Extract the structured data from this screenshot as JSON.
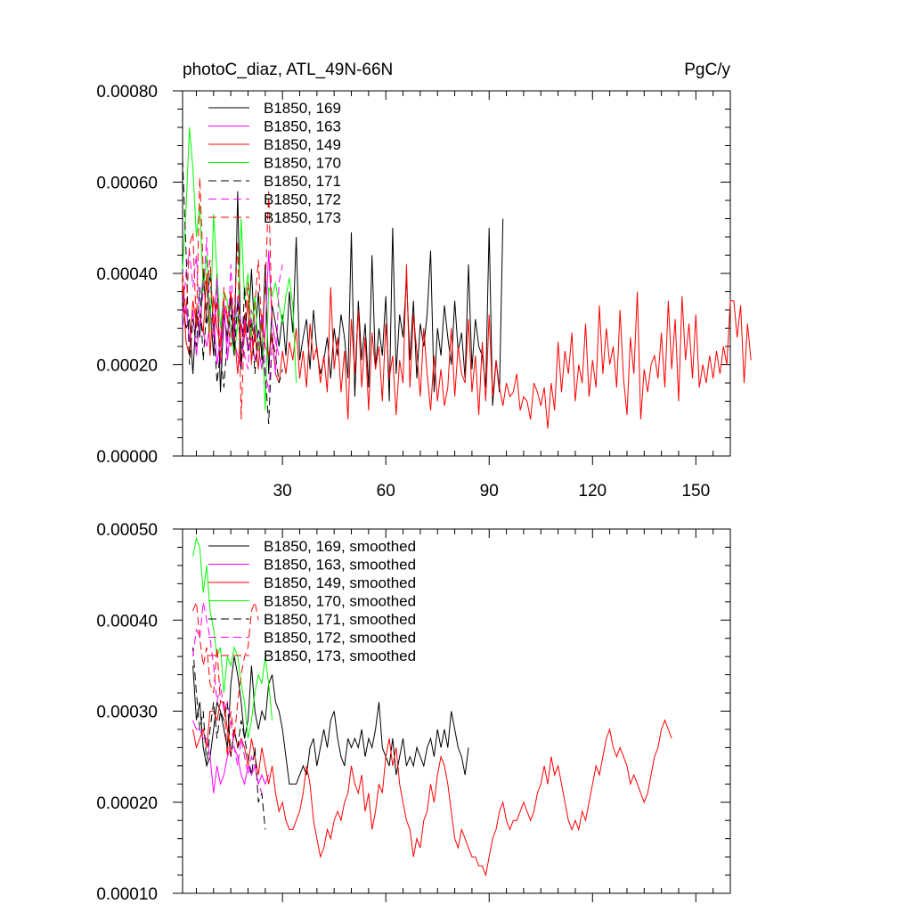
{
  "chart_data": [
    {
      "type": "line",
      "title": "photoC_diaz, ATL_49N-66N",
      "units": "PgC/y",
      "xlabel": "",
      "ylabel": "",
      "xlim": [
        1,
        160
      ],
      "ylim": [
        0,
        0.0008
      ],
      "xticks": [
        30,
        60,
        90,
        120,
        150
      ],
      "xtick_labels": [
        "30",
        "60",
        "90",
        "120",
        "150"
      ],
      "yticks": [
        0,
        0.0002,
        0.0004,
        0.0006,
        0.0008
      ],
      "ytick_labels": [
        "0.00000",
        "0.00020",
        "0.00040",
        "0.00060",
        "0.00080"
      ],
      "legend_position": "top-left",
      "series": [
        {
          "name": "B1850, 169",
          "label": "B1850, 169",
          "color": "#000000",
          "dash": "solid",
          "x_start": 1,
          "values": [
            0.00034,
            0.00028,
            0.0003,
            0.00018,
            0.00032,
            0.00026,
            0.00041,
            0.00029,
            0.00033,
            0.00022,
            0.0004,
            0.00014,
            0.00031,
            0.00026,
            0.00035,
            0.00023,
            0.00058,
            0.00019,
            0.00031,
            0.00027,
            0.00041,
            0.00025,
            0.00036,
            0.00021,
            0.00042,
            0.00018,
            0.00033,
            0.00029,
            0.00024,
            0.00031,
            0.00022,
            0.00036,
            0.00027,
            0.00048,
            0.00021,
            0.00026,
            0.0003,
            0.00019,
            0.00032,
            0.00023,
            0.00018,
            0.00021,
            0.00026,
            0.00017,
            0.00028,
            0.00022,
            0.00031,
            0.00026,
            0.00017,
            0.00049,
            0.00013,
            0.00034,
            0.00021,
            0.00029,
            0.00015,
            0.00044,
            0.00019,
            0.00028,
            0.00022,
            0.00035,
            0.00012,
            0.0005,
            0.00018,
            0.00031,
            0.00026,
            0.00039,
            0.00021,
            0.00034,
            0.00017,
            0.00029,
            0.00024,
            0.00031,
            0.00045,
            0.00014,
            0.00028,
            0.00022,
            0.00033,
            0.00026,
            0.0002,
            0.00034,
            0.00023,
            0.00027,
            0.00017,
            0.00042,
            0.00019,
            0.0003,
            0.00024,
            0.00022,
            0.00015,
            0.0005,
            0.00011,
            0.00021,
            0.00014,
            0.00052
          ]
        },
        {
          "name": "B1850, 163",
          "label": "B1850, 163",
          "color": "#ff00ff",
          "dash": "solid",
          "x_start": 1,
          "values": [
            0.00028,
            0.00033,
            0.00025,
            0.00032,
            0.00022,
            0.0003,
            0.00027,
            0.00024,
            0.00029,
            0.00031,
            0.0002,
            0.00026,
            0.00034,
            0.00021,
            0.00028,
            0.00025,
            0.00022,
            0.00019,
            0.0003,
            0.00023,
            0.00026,
            0.00021,
            0.00024,
            0.00019,
            0.00027,
            0.00045,
            0.00029,
            0.00025,
            0.00022
          ]
        },
        {
          "name": "B1850, 149",
          "label": "B1850, 149",
          "color": "#ff0000",
          "dash": "solid",
          "x_start": 1,
          "values": [
            0.00038,
            0.00025,
            0.00022,
            0.00034,
            0.00029,
            0.00031,
            0.00027,
            0.0004,
            0.00022,
            0.00035,
            0.00028,
            0.00024,
            0.00033,
            0.0003,
            0.00036,
            0.00027,
            0.00018,
            0.00029,
            0.00026,
            0.00034,
            0.00021,
            0.00027,
            0.00019,
            0.00031,
            0.00024,
            0.00022,
            0.00027,
            0.00018,
            0.00016,
            0.00023,
            0.00018,
            0.00025,
            0.00021,
            0.00028,
            0.00017,
            0.00023,
            0.00015,
            0.00029,
            0.00021,
            0.00024,
            0.00016,
            0.00022,
            0.00014,
            0.00037,
            0.00019,
            0.00026,
            0.00014,
            0.00023,
            8e-05,
            0.0003,
            0.00018,
            0.00032,
            0.00015,
            0.00026,
            0.0001,
            0.00027,
            0.00019,
            0.00024,
            0.00012,
            0.00029,
            0.00017,
            0.00022,
            9e-05,
            0.00021,
            0.00016,
            0.00042,
            0.00015,
            0.00031,
            0.00023,
            0.00013,
            0.00028,
            0.00018,
            0.0001,
            0.00022,
            0.00012,
            0.00019,
            0.00011,
            0.00015,
            0.00028,
            0.00013,
            0.00024,
            0.00018,
            0.00016,
            0.0003,
            0.00014,
            0.00022,
            9e-05,
            0.00025,
            0.00012,
            0.00031,
            0.00013,
            0.00021,
            0.00015,
            0.00011,
            0.00016,
            0.00013,
            0.00014,
            0.00018,
            0.0001,
            0.00013,
            0.00012,
            8e-05,
            0.00016,
            0.00014,
            0.00011,
            0.00015,
            6e-05,
            0.00016,
            0.0001,
            0.00025,
            0.00014,
            0.00023,
            0.00018,
            0.00027,
            0.00012,
            0.0002,
            0.00016,
            0.00029,
            0.00013,
            0.00021,
            0.00015,
            0.00033,
            0.00018,
            0.00028,
            0.0002,
            0.00024,
            0.00015,
            0.00032,
            0.00017,
            9e-05,
            0.00026,
            0.00018,
            0.00036,
            8e-05,
            0.00019,
            0.00014,
            0.0002,
            0.00022,
            0.00017,
            0.00027,
            0.00015,
            0.00034,
            0.00019,
            0.0003,
            0.00012,
            0.00035,
            0.00021,
            0.00029,
            0.00017,
            0.00031,
            0.00015,
            0.0002,
            0.00016,
            0.00022,
            0.00017,
            0.00023,
            0.00018,
            0.00024,
            0.0002,
            0.00034,
            0.00034,
            0.00026,
            0.00033,
            0.00016,
            0.00029,
            0.00021
          ]
        },
        {
          "name": "B1850, 170",
          "label": "B1850, 170",
          "color": "#00ff00",
          "dash": "solid",
          "x_start": 1,
          "values": [
            0.00041,
            0.00054,
            0.00072,
            0.00063,
            0.00048,
            0.00055,
            0.00036,
            0.00044,
            0.00027,
            0.00053,
            0.0004,
            0.00028,
            0.00036,
            0.00034,
            0.00027,
            0.00022,
            0.00029,
            0.00052,
            0.00034,
            0.0004,
            0.00026,
            0.00035,
            0.00023,
            0.0003,
            0.0001,
            0.00037,
            0.00035,
            0.00038,
            0.00033,
            0.00029,
            0.00035,
            0.00039,
            0.00033,
            0.00016
          ]
        },
        {
          "name": "B1850, 171",
          "label": "B1850, 171",
          "color": "#000000",
          "dash": "dashed",
          "x_start": 1,
          "values": [
            0.00065,
            0.00045,
            0.0002,
            0.0003,
            0.00024,
            0.00037,
            0.00021,
            0.00033,
            0.0004,
            0.00028,
            0.00016,
            0.00023,
            0.00015,
            0.00026,
            0.00031,
            0.00022,
            0.00034,
            0.00019,
            0.00037,
            0.00023,
            0.0003,
            0.00018,
            0.00028,
            0.00023,
            0.00018,
            7e-05,
            0.00026,
            0.00022,
            0.00016,
            0.00019
          ]
        },
        {
          "name": "B1850, 172",
          "label": "B1850, 172",
          "color": "#ff00ff",
          "dash": "dashed",
          "x_start": 1,
          "values": [
            0.00031,
            0.0004,
            0.00045,
            0.00037,
            0.00044,
            0.00029,
            0.00036,
            0.00048,
            0.00031,
            0.00026,
            0.00039,
            0.0002,
            0.00033,
            0.00023,
            0.00042,
            0.00026,
            0.00035,
            0.00029,
            0.00022,
            0.00019,
            0.00032,
            0.00028,
            0.00024,
            0.00031,
            0.00019,
            0.00014,
            0.00025,
            0.00018,
            0.00038,
            0.00042
          ]
        },
        {
          "name": "B1850, 173",
          "label": "B1850, 173",
          "color": "#ff0000",
          "dash": "dashed",
          "x_start": 1,
          "values": [
            0.0004,
            0.00031,
            0.00046,
            0.00049,
            0.00028,
            0.00061,
            0.00041,
            0.00036,
            0.00043,
            0.00027,
            0.00034,
            0.00021,
            0.00037,
            0.0003,
            0.00024,
            0.00031,
            0.00047,
            8e-05,
            0.00029,
            0.00038,
            0.0002,
            0.00033,
            0.00043,
            0.00027,
            0.00037,
            0.00058,
            0.00029
          ]
        }
      ]
    },
    {
      "type": "line",
      "title": "",
      "xlabel": "",
      "ylabel": "",
      "xlim": [
        1,
        160
      ],
      "ylim": [
        0.0001,
        0.0005
      ],
      "xticks": [
        30,
        60,
        90,
        120,
        150
      ],
      "xtick_labels": [],
      "yticks": [
        0.0001,
        0.0002,
        0.0003,
        0.0004,
        0.0005
      ],
      "ytick_labels": [
        "0.00010",
        "0.00020",
        "0.00030",
        "0.00040",
        "0.00050"
      ],
      "legend_position": "top-left",
      "series": [
        {
          "name": "B1850, 169, smoothed",
          "label": "B1850, 169, smoothed",
          "color": "#000000",
          "dash": "solid",
          "x_start": 4,
          "values": [
            0.00035,
            0.00029,
            0.00031,
            0.00026,
            0.00024,
            0.00025,
            0.00028,
            0.00031,
            0.0003,
            0.00028,
            0.00026,
            0.00033,
            0.00036,
            0.00034,
            0.00031,
            0.00027,
            0.00029,
            0.00035,
            0.0003,
            0.00028,
            0.0003,
            0.00029,
            0.00033,
            0.00034,
            0.00031,
            0.0003,
            0.00028,
            0.00025,
            0.00022,
            0.00022,
            0.00022,
            0.00023,
            0.00024,
            0.00023,
            0.00026,
            0.00027,
            0.00024,
            0.00026,
            0.00028,
            0.00026,
            0.00029,
            0.0003,
            0.00027,
            0.00025,
            0.00024,
            0.00027,
            0.00026,
            0.00027,
            0.00026,
            0.00028,
            0.00025,
            0.00027,
            0.00026,
            0.00028,
            0.00031,
            0.00026,
            0.00025,
            0.00024,
            0.00027,
            0.00023,
            0.00025,
            0.00027,
            0.00024,
            0.00025,
            0.00024,
            0.00026,
            0.00025,
            0.00024,
            0.00026,
            0.00027,
            0.00025,
            0.00028,
            0.00026,
            0.00028,
            0.00026,
            0.0003,
            0.00028,
            0.00026,
            0.00025,
            0.00023,
            0.00026
          ]
        },
        {
          "name": "B1850, 163, smoothed",
          "label": "B1850, 163, smoothed",
          "color": "#ff00ff",
          "dash": "solid",
          "x_start": 4,
          "values": [
            0.00029,
            0.00028,
            0.00028,
            0.00027,
            0.00027,
            0.00025,
            0.00021,
            0.00024,
            0.00022,
            0.00023,
            0.00025,
            0.00026,
            0.00026,
            0.00025,
            0.00023,
            0.00022,
            0.00024,
            0.00023,
            0.00024,
            0.00022,
            0.00023,
            0.00022,
            0.00023
          ]
        },
        {
          "name": "B1850, 149, smoothed",
          "label": "B1850, 149, smoothed",
          "color": "#ff0000",
          "dash": "solid",
          "x_start": 4,
          "values": [
            0.00028,
            0.00026,
            0.00027,
            0.00028,
            0.00026,
            0.0003,
            0.0003,
            0.00029,
            0.00031,
            0.00031,
            0.00028,
            0.00025,
            0.00028,
            0.00026,
            0.00027,
            0.00026,
            0.00024,
            0.00027,
            0.00025,
            0.00023,
            0.00026,
            0.00024,
            0.00022,
            0.00024,
            0.00021,
            0.00019,
            0.0002,
            0.00018,
            0.00017,
            0.00017,
            0.00018,
            0.00019,
            0.00021,
            0.00024,
            0.00022,
            0.00018,
            0.00016,
            0.00014,
            0.00015,
            0.00017,
            0.00016,
            0.00018,
            0.00019,
            0.00018,
            0.0002,
            0.00021,
            0.00024,
            0.00022,
            0.00021,
            0.00023,
            0.00019,
            0.00021,
            0.00017,
            0.00019,
            0.00022,
            0.00021,
            0.00025,
            0.00027,
            0.00024,
            0.00026,
            0.00022,
            0.0002,
            0.00018,
            0.00017,
            0.00014,
            0.00016,
            0.00015,
            0.00018,
            0.00019,
            0.00022,
            0.0002,
            0.00023,
            0.00025,
            0.00024,
            0.00022,
            0.00019,
            0.00016,
            0.00015,
            0.00017,
            0.00016,
            0.00015,
            0.00014,
            0.00014,
            0.00013,
            0.00013,
            0.00012,
            0.00014,
            0.00016,
            0.00017,
            0.00019,
            0.0002,
            0.00018,
            0.00017,
            0.00018,
            0.00018,
            0.00019,
            0.0002,
            0.00019,
            0.00018,
            0.00019,
            0.00021,
            0.00022,
            0.00024,
            0.00022,
            0.00025,
            0.00023,
            0.00024,
            0.00022,
            0.0002,
            0.00018,
            0.00017,
            0.00018,
            0.00017,
            0.00019,
            0.00018,
            0.0002,
            0.00022,
            0.00024,
            0.00023,
            0.00025,
            0.00027,
            0.00028,
            0.00026,
            0.00025,
            0.00026,
            0.00025,
            0.00024,
            0.00022,
            0.00023,
            0.00022,
            0.00021,
            0.0002,
            0.00021,
            0.00023,
            0.00025,
            0.00026,
            0.00028,
            0.00029,
            0.00028,
            0.00027
          ]
        },
        {
          "name": "B1850, 170, smoothed",
          "label": "B1850, 170, smoothed",
          "color": "#00ff00",
          "dash": "solid",
          "x_start": 4,
          "values": [
            0.00047,
            0.00049,
            0.00048,
            0.00043,
            0.00046,
            0.00041,
            0.00039,
            0.00036,
            0.00037,
            0.00032,
            0.00036,
            0.00035,
            0.00037,
            0.00036,
            0.00033,
            0.00031,
            0.00027,
            0.00029,
            0.00032,
            0.00034,
            0.00033,
            0.00036,
            0.00033,
            0.00029
          ]
        },
        {
          "name": "B1850, 171, smoothed",
          "label": "B1850, 171, smoothed",
          "color": "#000000",
          "dash": "dashed",
          "x_start": 4,
          "values": [
            0.00037,
            0.00032,
            0.00028,
            0.0003,
            0.00024,
            0.00028,
            0.00031,
            0.00027,
            0.0003,
            0.00029,
            0.00031,
            0.00025,
            0.00028,
            0.00026,
            0.00029,
            0.00027,
            0.00025,
            0.00023,
            0.00026,
            0.0002,
            0.00021,
            0.00017
          ]
        },
        {
          "name": "B1850, 172, smoothed",
          "label": "B1850, 172, smoothed",
          "color": "#ff00ff",
          "dash": "dashed",
          "x_start": 4,
          "values": [
            0.00036,
            0.00039,
            0.00038,
            0.00042,
            0.0004,
            0.00038,
            0.00035,
            0.00031,
            0.00033,
            0.0003,
            0.00031,
            0.00029,
            0.00026,
            0.00024,
            0.00027,
            0.00025,
            0.00023,
            0.00025,
            0.00024,
            0.00022,
            0.00021
          ]
        },
        {
          "name": "B1850, 173, smoothed",
          "label": "B1850, 173, smoothed",
          "color": "#ff0000",
          "dash": "dashed",
          "x_start": 4,
          "values": [
            0.00041,
            0.00042,
            0.00038,
            0.00035,
            0.00037,
            0.00033,
            0.00032,
            0.00037,
            0.00031,
            0.00031,
            0.00025,
            0.0003,
            0.00027,
            0.00031,
            0.00034,
            0.00036,
            0.00037,
            0.00041,
            0.00042,
            0.0004
          ]
        }
      ]
    }
  ]
}
